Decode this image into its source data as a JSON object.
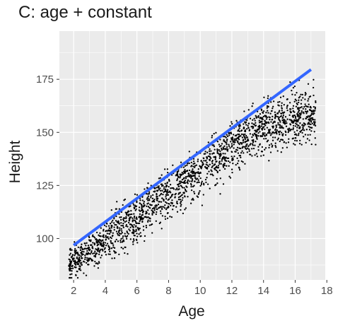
{
  "chart_data": {
    "type": "scatter",
    "title": "C: age + constant",
    "xlabel": "Age",
    "ylabel": "Height",
    "xlim": [
      1.1,
      17.9
    ],
    "ylim": [
      80.5,
      197.7
    ],
    "x_ticks": [
      "2",
      "4",
      "6",
      "8",
      "10",
      "12",
      "14",
      "16",
      "18"
    ],
    "y_ticks": [
      "100",
      "125",
      "150",
      "175"
    ],
    "grid": true,
    "panel_background": "#ebebeb",
    "point_color": "#000000",
    "fit_line_color": "#3366ff",
    "scatter": {
      "n_points": 2000,
      "x_range": [
        1.7,
        17.3
      ],
      "approx_trend": "mean height rises from about 90 at age 2 to about 168 at age 17, flattening after age 14",
      "spread_sd": 5.5
    },
    "series": [
      {
        "type": "line",
        "x": [
          2.0,
          17.0
        ],
        "y": [
          96.8,
          179.6
        ]
      }
    ]
  }
}
